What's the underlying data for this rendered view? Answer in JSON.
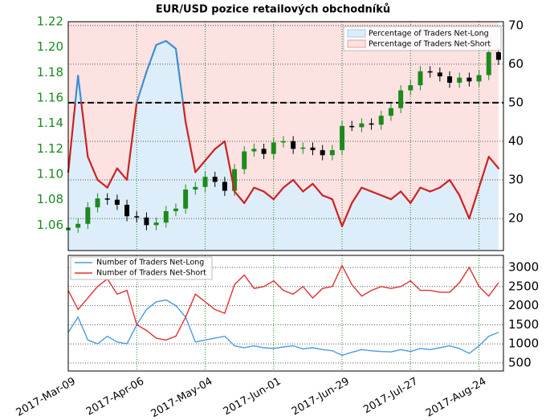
{
  "chart_data": [
    {
      "type": "candlestick",
      "title": "EUR/USD pozice retailových obchodníků",
      "x": [
        "2017-03-09",
        "2017-03-13",
        "2017-03-17",
        "2017-03-21",
        "2017-03-25",
        "2017-03-29",
        "2017-04-02",
        "2017-04-06",
        "2017-04-10",
        "2017-04-14",
        "2017-04-18",
        "2017-04-22",
        "2017-04-26",
        "2017-04-30",
        "2017-05-04",
        "2017-05-08",
        "2017-05-12",
        "2017-05-16",
        "2017-05-20",
        "2017-05-24",
        "2017-05-28",
        "2017-06-01",
        "2017-06-05",
        "2017-06-09",
        "2017-06-13",
        "2017-06-17",
        "2017-06-21",
        "2017-06-25",
        "2017-06-29",
        "2017-07-03",
        "2017-07-07",
        "2017-07-11",
        "2017-07-15",
        "2017-07-19",
        "2017-07-23",
        "2017-07-27",
        "2017-07-31",
        "2017-08-04",
        "2017-08-08",
        "2017-08-12",
        "2017-08-16",
        "2017-08-20",
        "2017-08-24",
        "2017-08-28",
        "2017-09-01"
      ],
      "open": [
        1.056,
        1.058,
        1.061,
        1.074,
        1.081,
        1.08,
        1.076,
        1.067,
        1.066,
        1.06,
        1.062,
        1.071,
        1.073,
        1.088,
        1.09,
        1.098,
        1.094,
        1.087,
        1.104,
        1.118,
        1.12,
        1.116,
        1.125,
        1.126,
        1.12,
        1.121,
        1.119,
        1.115,
        1.119,
        1.138,
        1.137,
        1.14,
        1.139,
        1.146,
        1.152,
        1.166,
        1.17,
        1.181,
        1.18,
        1.177,
        1.172,
        1.176,
        1.173,
        1.178,
        1.196
      ],
      "high": [
        1.062,
        1.065,
        1.078,
        1.085,
        1.085,
        1.084,
        1.08,
        1.071,
        1.07,
        1.066,
        1.075,
        1.077,
        1.092,
        1.094,
        1.102,
        1.102,
        1.098,
        1.108,
        1.122,
        1.124,
        1.124,
        1.129,
        1.13,
        1.13,
        1.125,
        1.125,
        1.123,
        1.123,
        1.142,
        1.142,
        1.144,
        1.144,
        1.15,
        1.156,
        1.17,
        1.174,
        1.185,
        1.185,
        1.184,
        1.181,
        1.18,
        1.18,
        1.182,
        1.2,
        1.2
      ],
      "low": [
        1.052,
        1.054,
        1.057,
        1.07,
        1.076,
        1.072,
        1.063,
        1.062,
        1.056,
        1.056,
        1.058,
        1.067,
        1.069,
        1.084,
        1.086,
        1.09,
        1.083,
        1.083,
        1.1,
        1.114,
        1.112,
        1.112,
        1.121,
        1.116,
        1.116,
        1.115,
        1.111,
        1.111,
        1.115,
        1.134,
        1.133,
        1.135,
        1.135,
        1.142,
        1.148,
        1.162,
        1.166,
        1.176,
        1.173,
        1.168,
        1.168,
        1.169,
        1.169,
        1.174,
        1.186
      ],
      "close": [
        1.058,
        1.061,
        1.074,
        1.081,
        1.08,
        1.076,
        1.067,
        1.066,
        1.06,
        1.062,
        1.071,
        1.073,
        1.088,
        1.09,
        1.098,
        1.094,
        1.087,
        1.104,
        1.118,
        1.12,
        1.116,
        1.125,
        1.126,
        1.12,
        1.121,
        1.119,
        1.115,
        1.119,
        1.138,
        1.137,
        1.14,
        1.139,
        1.146,
        1.152,
        1.166,
        1.17,
        1.181,
        1.18,
        1.177,
        1.172,
        1.176,
        1.173,
        1.178,
        1.196,
        1.19
      ],
      "up_color": "#1d8a1d",
      "down_color": "#000000",
      "xlim": [
        "2017-03-09",
        "2017-09-03"
      ],
      "ylim": [
        1.04,
        1.22
      ],
      "yticks": [
        1.06,
        1.08,
        {
          "value": 1.1,
          "label": "1.10"
        },
        1.12,
        1.14,
        1.16,
        1.18,
        {
          "value": 1.2,
          "label": "1.20"
        },
        1.22
      ],
      "y2lim": [
        11.7,
        71
      ],
      "y2ticks": [
        20,
        30,
        40,
        50,
        60,
        70
      ],
      "hline": 50,
      "series": [
        {
          "name": "Percentage of Traders Net-Long",
          "color": "#ddeefa",
          "line_color": "#3d8fd1",
          "axis": "y2",
          "values": [
            32,
            57,
            36,
            30,
            28,
            33,
            30,
            50,
            58,
            65,
            66,
            64,
            45,
            32,
            35,
            38,
            40,
            27,
            24,
            28,
            27,
            25,
            28,
            30,
            27,
            29,
            26,
            25,
            18,
            24,
            28,
            27,
            26,
            25,
            27,
            24,
            28,
            27,
            28,
            30,
            26,
            20,
            28,
            36,
            33
          ]
        },
        {
          "name": "Percentage of Traders Net-Short",
          "color": "#fde2e2",
          "line_color": "#cc2222"
        }
      ],
      "grid": true,
      "legend": "upper-right"
    },
    {
      "type": "line",
      "x": [
        "2017-03-09",
        "2017-03-13",
        "2017-03-17",
        "2017-03-21",
        "2017-03-25",
        "2017-03-29",
        "2017-04-02",
        "2017-04-06",
        "2017-04-10",
        "2017-04-14",
        "2017-04-18",
        "2017-04-22",
        "2017-04-26",
        "2017-04-30",
        "2017-05-04",
        "2017-05-08",
        "2017-05-12",
        "2017-05-16",
        "2017-05-20",
        "2017-05-24",
        "2017-05-28",
        "2017-06-01",
        "2017-06-05",
        "2017-06-09",
        "2017-06-13",
        "2017-06-17",
        "2017-06-21",
        "2017-06-25",
        "2017-06-29",
        "2017-07-03",
        "2017-07-07",
        "2017-07-11",
        "2017-07-15",
        "2017-07-19",
        "2017-07-23",
        "2017-07-27",
        "2017-07-31",
        "2017-08-04",
        "2017-08-08",
        "2017-08-12",
        "2017-08-16",
        "2017-08-20",
        "2017-08-24",
        "2017-08-28",
        "2017-09-01"
      ],
      "xlim": [
        "2017-03-09",
        "2017-09-03"
      ],
      "xticks": [
        {
          "value": "2017-03-09",
          "label": "2017-Mar-09"
        },
        {
          "value": "2017-04-06",
          "label": "2017-Apr-06"
        },
        {
          "value": "2017-05-04",
          "label": "2017-May-04"
        },
        {
          "value": "2017-06-01",
          "label": "2017-Jun-01"
        },
        {
          "value": "2017-06-29",
          "label": "2017-Jun-29"
        },
        {
          "value": "2017-07-27",
          "label": "2017-Jul-27"
        },
        {
          "value": "2017-08-24",
          "label": "2017-Aug-24"
        }
      ],
      "ylim": [
        290,
        3315
      ],
      "yticks": [
        500,
        1000,
        1500,
        2000,
        2500,
        3000
      ],
      "series": [
        {
          "name": "Number of Traders Net-Long",
          "color": "#4a9be0",
          "values": [
            1300,
            1700,
            1100,
            1000,
            1200,
            1050,
            1000,
            1500,
            1900,
            2100,
            2150,
            2000,
            1700,
            1050,
            1100,
            1150,
            1200,
            950,
            900,
            950,
            900,
            880,
            920,
            950,
            870,
            900,
            850,
            820,
            700,
            780,
            850,
            820,
            800,
            790,
            850,
            800,
            880,
            850,
            900,
            950,
            880,
            750,
            950,
            1200,
            1300
          ]
        },
        {
          "name": "Number of Traders Net-Short",
          "color": "#e03232",
          "values": [
            2400,
            1900,
            2200,
            2500,
            2700,
            2300,
            2400,
            1500,
            1350,
            1150,
            1100,
            1200,
            1700,
            2300,
            2100,
            1900,
            1800,
            2550,
            2800,
            2450,
            2500,
            2650,
            2400,
            2300,
            2500,
            2200,
            2450,
            2500,
            3050,
            2550,
            2250,
            2400,
            2500,
            2450,
            2500,
            2650,
            2400,
            2400,
            2350,
            2350,
            2600,
            3000,
            2500,
            2250,
            2600
          ]
        }
      ],
      "grid": true,
      "legend": "upper-left"
    }
  ]
}
